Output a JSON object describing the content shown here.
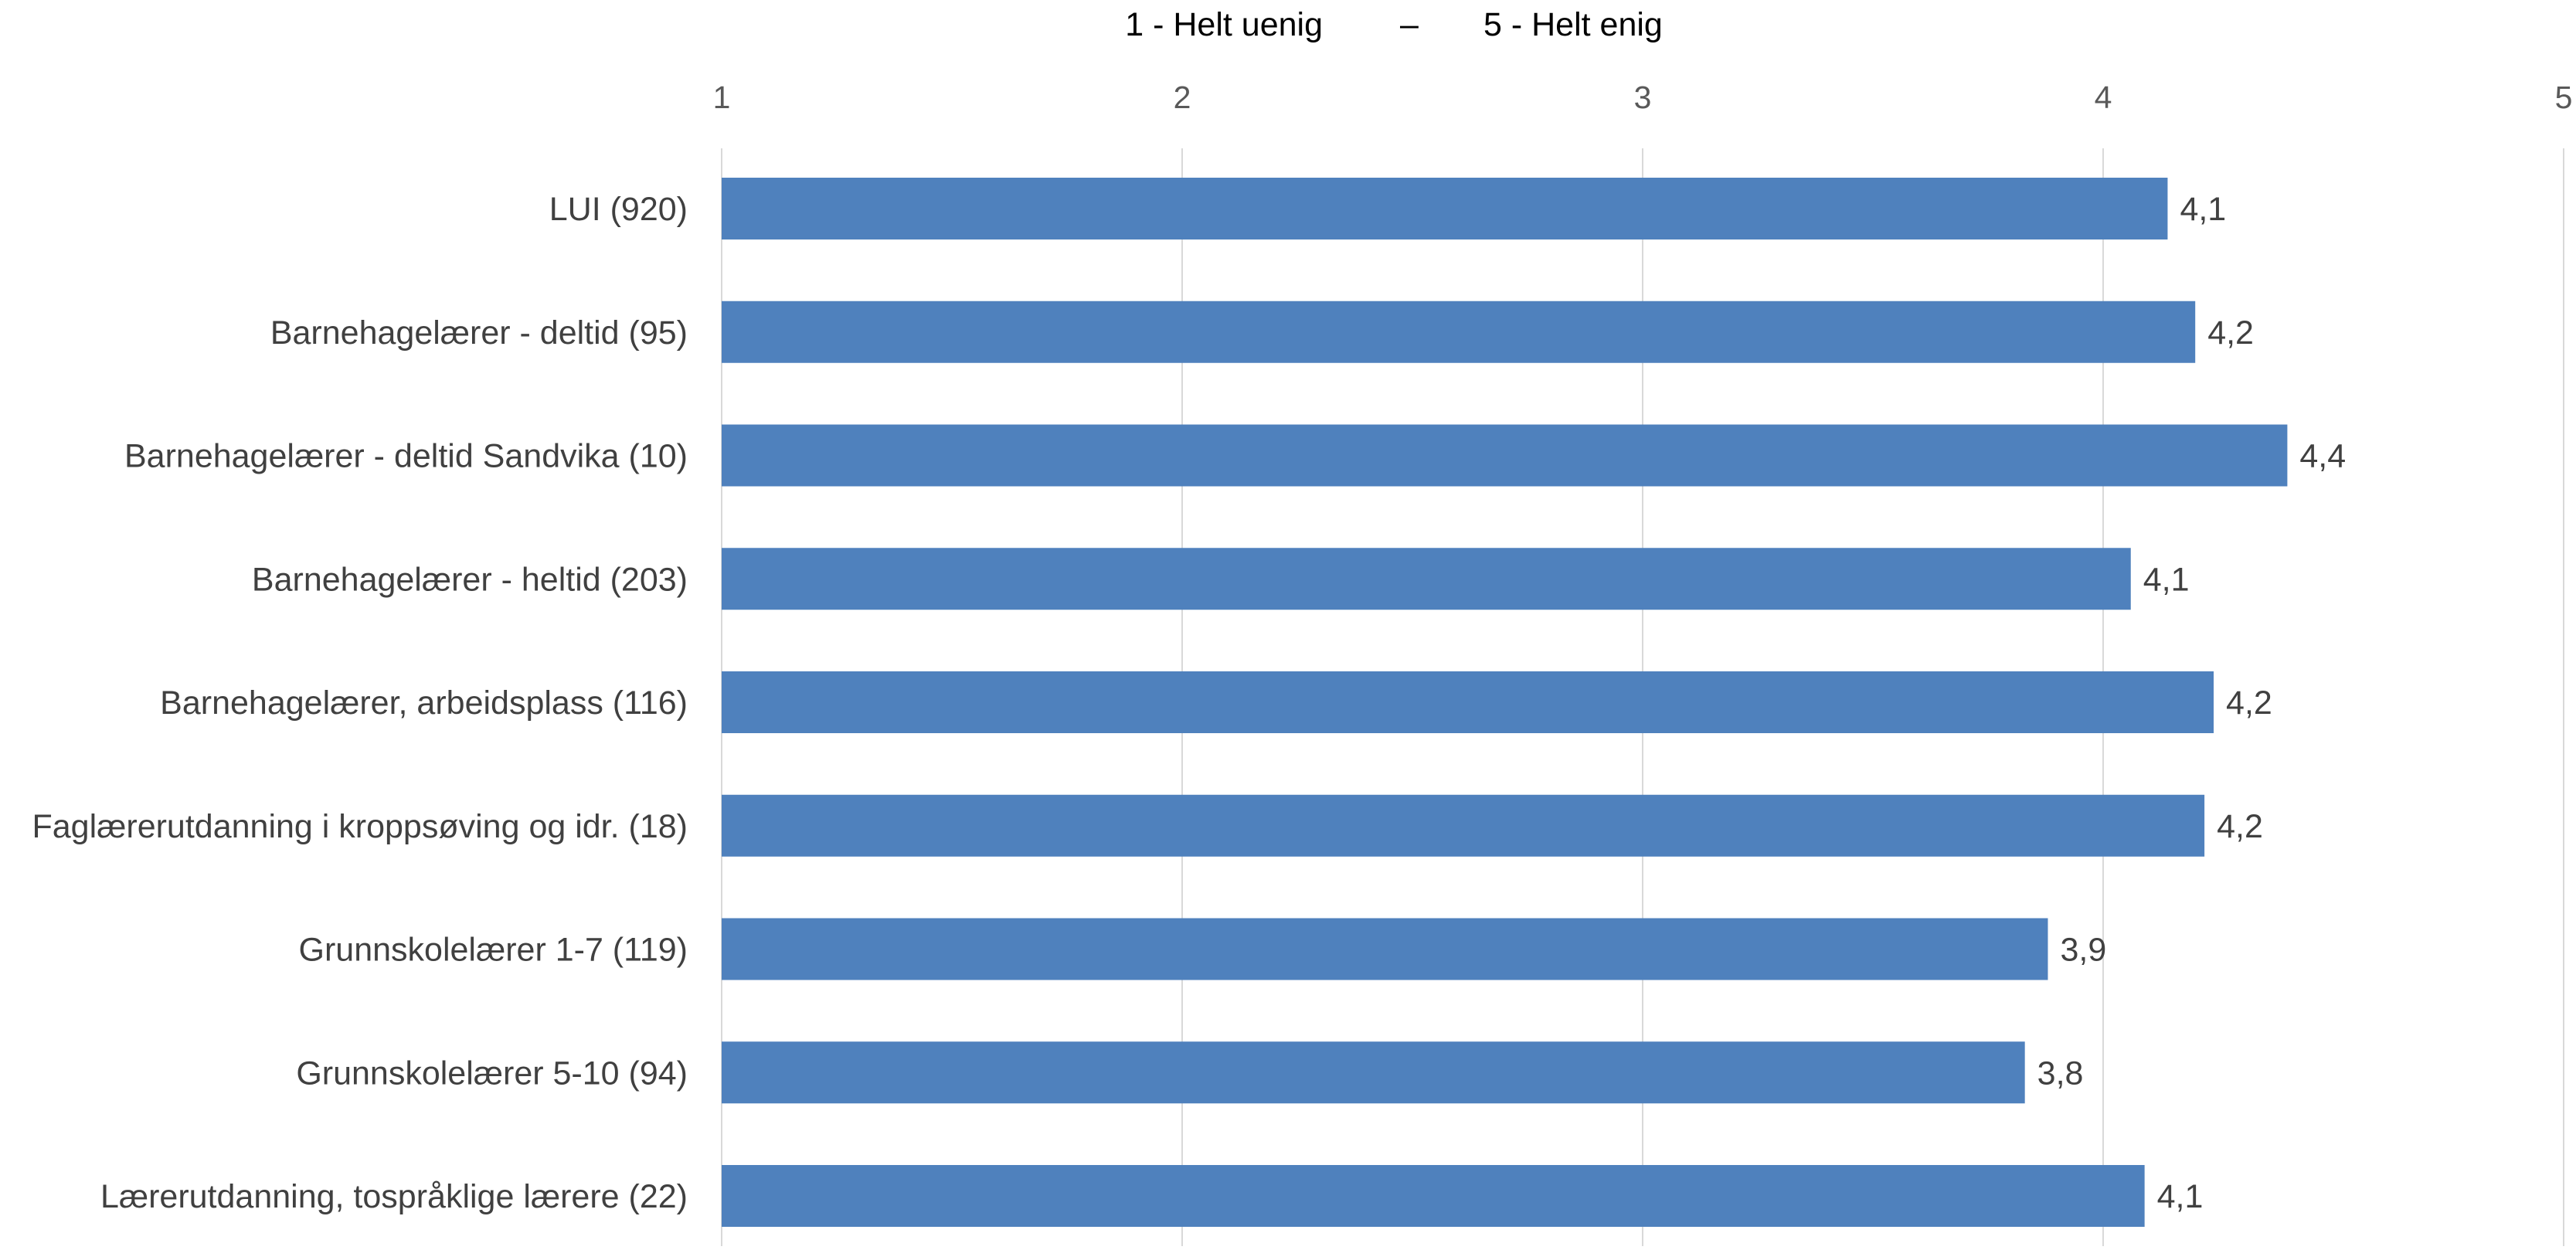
{
  "header": {
    "left_text": "1 - Helt uenig",
    "separator": "–",
    "right_text": "5 - Helt enig"
  },
  "chart_data": {
    "type": "bar",
    "orientation": "horizontal",
    "title": "",
    "xlabel": "",
    "ylabel": "",
    "xlim": [
      1,
      5
    ],
    "ticks": [
      1,
      2,
      3,
      4,
      5
    ],
    "tick_labels": [
      "1",
      "2",
      "3",
      "4",
      "5"
    ],
    "tick_position": "top",
    "grid": true,
    "legend": "none",
    "categories": [
      "LUI (920)",
      "Barnehagelærer - deltid (95)",
      "Barnehagelærer - deltid Sandvika (10)",
      "Barnehagelærer - heltid (203)",
      "Barnehagelærer, arbeidsplass (116)",
      "Faglærerutdanning i kroppsøving og idr. (18)",
      "Grunnskolelærer 1-7 (119)",
      "Grunnskolelærer 5-10 (94)",
      "Lærerutdanning, tospråklige lærere (22)"
    ],
    "values": [
      4.14,
      4.2,
      4.4,
      4.06,
      4.24,
      4.22,
      3.88,
      3.83,
      4.09
    ],
    "data_labels": [
      "4,1",
      "4,2",
      "4,4",
      "4,1",
      "4,2",
      "4,2",
      "3,9",
      "3,8",
      "4,1"
    ],
    "bar_color": "#4f81bd",
    "grid_color": "#d9d9d9"
  }
}
